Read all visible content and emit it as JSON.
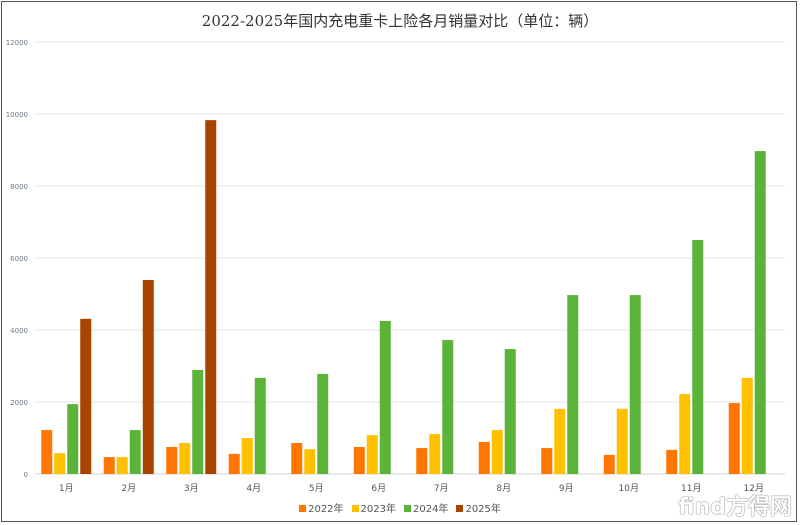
{
  "chart_data": {
    "type": "bar",
    "title": "2022-2025年国内充电重卡上险各月销量对比（单位：辆）",
    "xlabel": "",
    "ylabel": "",
    "ylim": [
      0,
      12000
    ],
    "yticks": [
      0,
      2000,
      4000,
      6000,
      8000,
      10000,
      12000
    ],
    "grid": true,
    "legend_position": "bottom",
    "categories": [
      "1月",
      "2月",
      "3月",
      "4月",
      "5月",
      "6月",
      "7月",
      "8月",
      "9月",
      "10月",
      "11月",
      "12月"
    ],
    "series": [
      {
        "name": "2022年",
        "color": "#ff7700",
        "values": [
          1220,
          470,
          750,
          560,
          860,
          750,
          720,
          890,
          720,
          530,
          670,
          1970
        ]
      },
      {
        "name": "2023年",
        "color": "#ffc000",
        "values": [
          580,
          470,
          860,
          1000,
          690,
          1080,
          1110,
          1220,
          1810,
          1810,
          2220,
          2670
        ]
      },
      {
        "name": "2024年",
        "color": "#5bb33a",
        "values": [
          1940,
          1220,
          2890,
          2670,
          2780,
          4250,
          3720,
          3470,
          4970,
          4970,
          6500,
          8970
        ]
      },
      {
        "name": "2025年",
        "color": "#a94400",
        "values": [
          4310,
          5390,
          9830,
          null,
          null,
          null,
          null,
          null,
          null,
          null,
          null,
          null
        ]
      }
    ]
  },
  "watermark": "find方得网"
}
